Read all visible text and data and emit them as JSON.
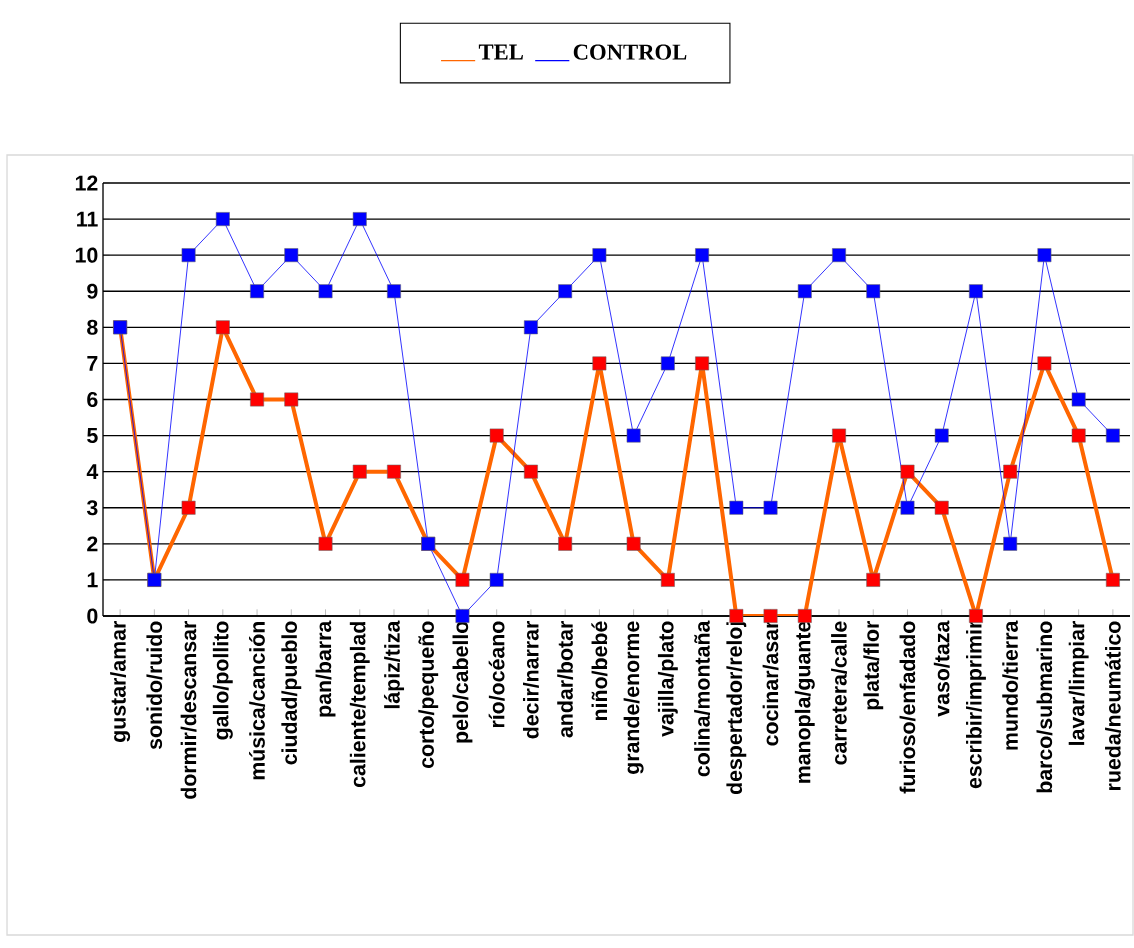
{
  "chart_data": {
    "type": "line",
    "categories": [
      "gustar/amar",
      "sonido/ruido",
      "dormir/descansar",
      "gallo/pollito",
      "música/canción",
      "ciudad/pueblo",
      "pan/barra",
      "caliente/templad",
      "lápiz/tiza",
      "corto/pequeño",
      "pelo/cabello",
      "río/océano",
      "decir/narrar",
      "andar/botar",
      "niño/bebé",
      "grande/enorme",
      "vajilla/plato",
      "colina/montaña",
      "despertador/reloj",
      "cocinar/asar",
      "manopla/guante",
      "carretera/calle",
      "plata/flor",
      "furioso/enfadado",
      "vaso/taza",
      "escribir/imprimir",
      "mundo/tierra",
      "barco/submarino",
      "lavar/limpiar",
      "rueda/neumático"
    ],
    "series": [
      {
        "name": "TEL",
        "color": "#ff6600",
        "values": [
          8,
          1,
          3,
          8,
          6,
          6,
          2,
          4,
          4,
          2,
          1,
          5,
          4,
          2,
          7,
          2,
          1,
          7,
          0,
          0,
          0,
          5,
          1,
          4,
          3,
          0,
          4,
          7,
          5,
          1
        ]
      },
      {
        "name": "CONTROL",
        "color": "#0000ff",
        "values": [
          8,
          1,
          10,
          11,
          9,
          10,
          9,
          11,
          9,
          2,
          0,
          1,
          8,
          9,
          10,
          5,
          7,
          10,
          3,
          3,
          9,
          10,
          9,
          3,
          5,
          9,
          2,
          10,
          6,
          5
        ]
      }
    ],
    "ylim": [
      0,
      12
    ],
    "yticks": [
      0,
      1,
      2,
      3,
      4,
      5,
      6,
      7,
      8,
      9,
      10,
      11,
      12
    ],
    "grid": "y",
    "legend": "top",
    "marker": "square",
    "line_style": "solid"
  }
}
